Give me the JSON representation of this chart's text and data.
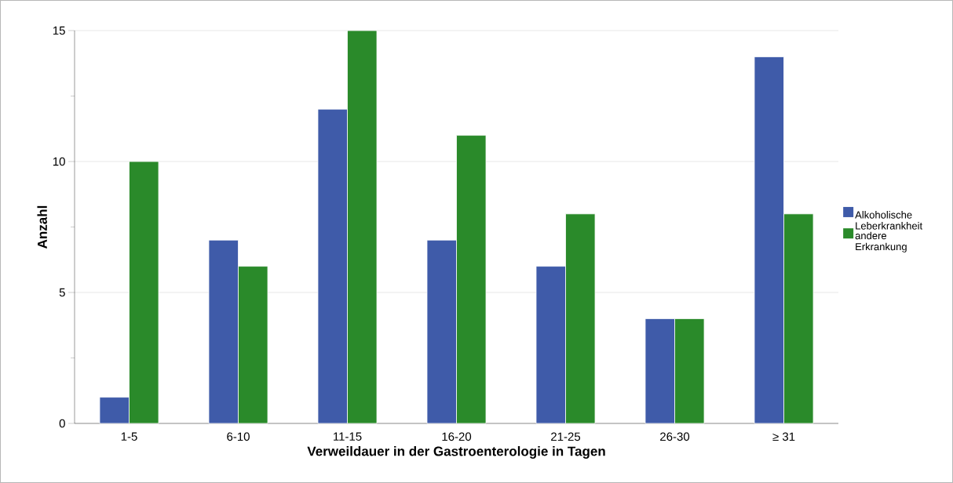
{
  "chart_data": {
    "type": "bar",
    "xlabel": "Verweildauer in der Gastroenterologie in Tagen",
    "ylabel": "Anzahl",
    "categories": [
      "1-5",
      "6-10",
      "11-15",
      "16-20",
      "21-25",
      "26-30",
      "≥ 31"
    ],
    "series": [
      {
        "name": "Alkoholische Leberkrankheit",
        "color": "#3f5ba9",
        "values": [
          1,
          7,
          12,
          7,
          6,
          4,
          14
        ]
      },
      {
        "name": "andere Erkrankung",
        "color": "#2a8a2a",
        "values": [
          10,
          6,
          15,
          11,
          8,
          4,
          8
        ]
      }
    ],
    "ylim": [
      0,
      15
    ],
    "yticks": [
      0,
      {
        "value": 2.5,
        "label": null
      },
      5,
      {
        "value": 7.5,
        "label": null
      },
      10,
      {
        "value": 12.5,
        "label": null
      },
      15
    ],
    "grid": "y",
    "legend": "right"
  }
}
